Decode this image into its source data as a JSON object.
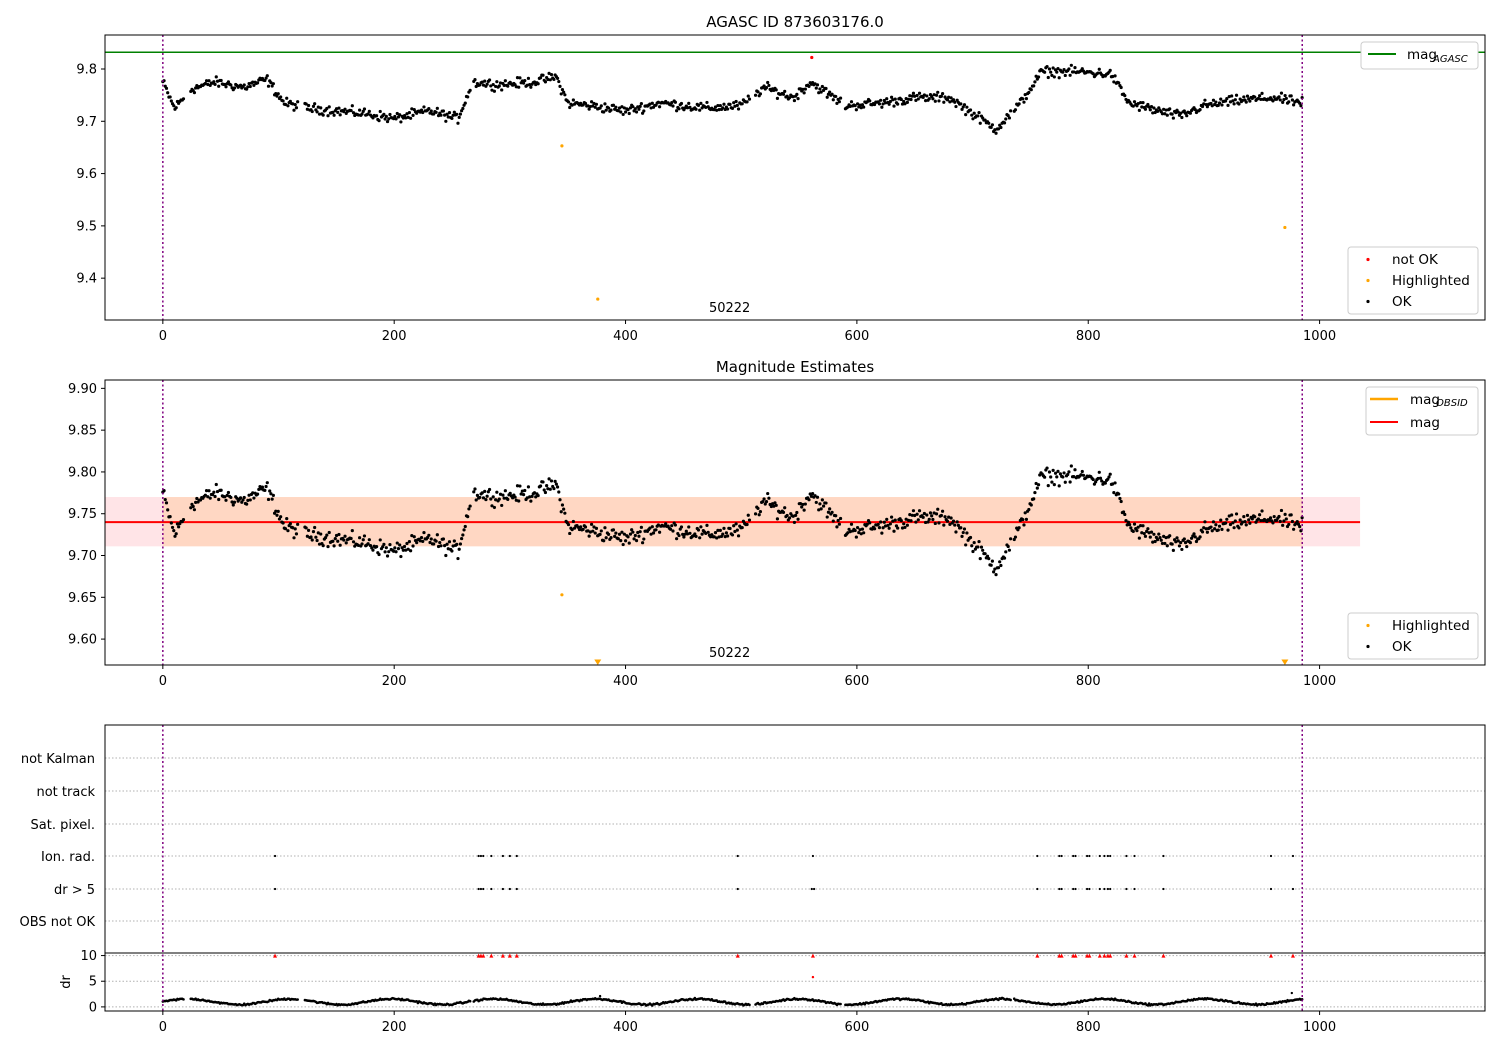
{
  "chart_data": [
    {
      "type": "scatter",
      "title": "AGASC ID 873603176.0",
      "xlim": [
        -50,
        1143
      ],
      "ylim": [
        9.32,
        9.865
      ],
      "xticks": [
        0,
        200,
        400,
        600,
        800,
        1000
      ],
      "yticks": [
        9.4,
        9.5,
        9.6,
        9.7,
        9.8
      ],
      "ytick_labels": [
        "9.4",
        "9.5",
        "9.6",
        "9.7",
        "9.8"
      ],
      "obsid_label": "50222",
      "obsid_label_x": 490,
      "obs_bounds": [
        0,
        985
      ],
      "reference_line": {
        "name": "mag",
        "subscript": "AGASC",
        "y": 9.832,
        "color": "#008000"
      },
      "legend_top": {
        "position": "top-right",
        "entries": [
          {
            "label": "mag",
            "subscript": "AGASC",
            "color": "#008000",
            "style": "line"
          }
        ]
      },
      "legend_bottom": {
        "position": "lower-right",
        "entries": [
          {
            "label": "not OK",
            "color": "#ff0000",
            "style": "dot"
          },
          {
            "label": "Highlighted",
            "color": "#ffa500",
            "style": "dot"
          },
          {
            "label": "OK",
            "color": "#000000",
            "style": "dot"
          }
        ]
      },
      "ok_segments": [
        [
          0,
          9.775
        ],
        [
          10,
          9.725
        ],
        [
          25,
          9.762
        ],
        [
          45,
          9.775
        ],
        [
          70,
          9.765
        ],
        [
          90,
          9.78
        ],
        [
          105,
          9.735
        ],
        [
          125,
          9.725
        ],
        [
          150,
          9.72
        ],
        [
          175,
          9.715
        ],
        [
          200,
          9.705
        ],
        [
          230,
          9.72
        ],
        [
          255,
          9.705
        ],
        [
          268,
          9.775
        ],
        [
          290,
          9.77
        ],
        [
          320,
          9.775
        ],
        [
          340,
          9.785
        ],
        [
          350,
          9.735
        ],
        [
          370,
          9.73
        ],
        [
          400,
          9.72
        ],
        [
          430,
          9.735
        ],
        [
          470,
          9.725
        ],
        [
          500,
          9.73
        ],
        [
          520,
          9.765
        ],
        [
          545,
          9.745
        ],
        [
          560,
          9.775
        ],
        [
          590,
          9.73
        ],
        [
          620,
          9.735
        ],
        [
          650,
          9.745
        ],
        [
          680,
          9.745
        ],
        [
          700,
          9.715
        ],
        [
          720,
          9.685
        ],
        [
          740,
          9.73
        ],
        [
          760,
          9.795
        ],
        [
          790,
          9.795
        ],
        [
          820,
          9.79
        ],
        [
          835,
          9.735
        ],
        [
          860,
          9.72
        ],
        [
          880,
          9.71
        ],
        [
          900,
          9.73
        ],
        [
          930,
          9.74
        ],
        [
          960,
          9.745
        ],
        [
          985,
          9.735
        ]
      ],
      "not_ok_points": [
        [
          561,
          9.822
        ]
      ],
      "highlighted_points": [
        [
          345,
          9.653
        ],
        [
          376,
          9.36
        ],
        [
          970,
          9.497
        ]
      ]
    },
    {
      "type": "scatter",
      "title": "Magnitude Estimates",
      "xlim": [
        -50,
        1143
      ],
      "ylim": [
        9.569,
        9.91
      ],
      "xticks": [
        0,
        200,
        400,
        600,
        800,
        1000
      ],
      "yticks": [
        9.6,
        9.65,
        9.7,
        9.75,
        9.8,
        9.85,
        9.9
      ],
      "ytick_labels": [
        "9.60",
        "9.65",
        "9.70",
        "9.75",
        "9.80",
        "9.85",
        "9.90"
      ],
      "obsid_label": "50222",
      "obsid_label_x": 490,
      "obs_bounds": [
        0,
        985
      ],
      "mag_line": {
        "y": 9.74,
        "x_range": [
          -50,
          1035
        ],
        "color": "#ff0000"
      },
      "mag_band": {
        "y_range": [
          9.711,
          9.77
        ],
        "x_range": [
          -50,
          1035
        ],
        "color": "#ffb3bb"
      },
      "obsid_band": {
        "y_range": [
          9.711,
          9.77
        ],
        "x_range": [
          0,
          985
        ],
        "color": "#ffc080"
      },
      "legend_top": {
        "position": "top-right",
        "entries": [
          {
            "label": "mag",
            "subscript": "OBSID",
            "color": "#ffa500",
            "style": "line"
          },
          {
            "label": "mag",
            "subscript": "",
            "color": "#ff0000",
            "style": "line"
          }
        ]
      },
      "legend_bottom": {
        "position": "lower-right",
        "entries": [
          {
            "label": "Highlighted",
            "color": "#ffa500",
            "style": "dot"
          },
          {
            "label": "OK",
            "color": "#000000",
            "style": "dot"
          }
        ]
      },
      "highlighted_points": [
        [
          345,
          9.653
        ]
      ],
      "offscale_markers": [
        [
          376,
          9.572
        ],
        [
          970,
          9.572
        ]
      ]
    },
    {
      "type": "scatter",
      "title": "",
      "xlim": [
        -50,
        1143
      ],
      "xticks": [
        0,
        200,
        400,
        600,
        800,
        1000
      ],
      "flag_rows": [
        "not Kalman",
        "not track",
        "Sat. pixel.",
        "Ion. rad.",
        "dr > 5",
        "OBS not OK"
      ],
      "flag_points": {
        "Ion. rad.": [
          97,
          273,
          275,
          277,
          284,
          294,
          300,
          306,
          497,
          562,
          756,
          775,
          777,
          787,
          789,
          799,
          801,
          810,
          814,
          817,
          819,
          833,
          840,
          865,
          958,
          977
        ],
        "dr > 5": [
          97,
          273,
          275,
          277,
          284,
          294,
          300,
          306,
          497,
          561,
          563,
          756,
          775,
          777,
          787,
          789,
          799,
          801,
          810,
          814,
          817,
          819,
          833,
          840,
          865,
          958,
          977
        ]
      },
      "dr_axis": {
        "ylabel": "dr",
        "yticks": [
          0,
          5,
          10
        ],
        "ylim": [
          -0.8,
          10.5
        ]
      },
      "dr_clipped_points": [
        97,
        273,
        275,
        277,
        284,
        294,
        300,
        306,
        497,
        562,
        756,
        775,
        777,
        787,
        789,
        799,
        801,
        810,
        814,
        817,
        819,
        833,
        840,
        865,
        958,
        977
      ],
      "dr_outliers": [
        [
          562,
          5.8
        ],
        [
          976,
          2.7
        ],
        [
          378,
          2.1
        ]
      ],
      "obs_bounds": [
        0,
        985
      ]
    }
  ]
}
